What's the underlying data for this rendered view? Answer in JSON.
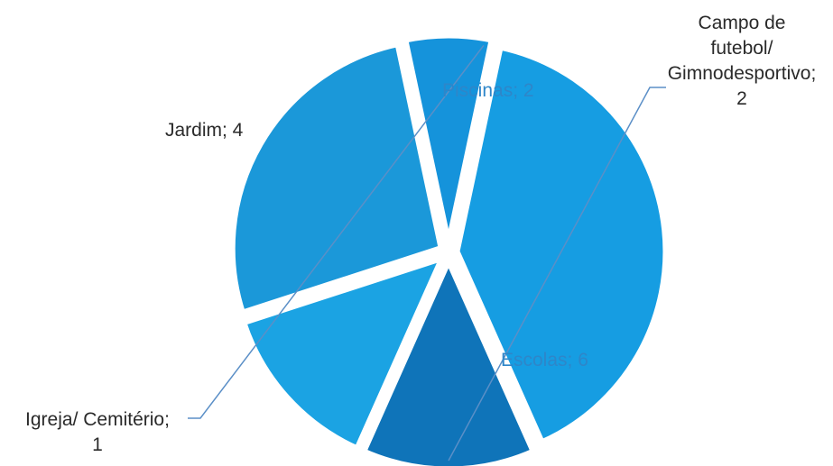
{
  "chart_data": {
    "type": "pie",
    "title": "",
    "slices": [
      {
        "label": "Escolas",
        "value": 6,
        "display": "Escolas; 6",
        "color": "#169de2"
      },
      {
        "label": "Igreja/ Cemitério",
        "value": 1,
        "display": "Igreja/ Cemitério; 1",
        "color": "#1593db"
      },
      {
        "label": "Jardim",
        "value": 4,
        "display": "Jardim; 4",
        "color": "#1b98d9"
      },
      {
        "label": "Piscinas",
        "value": 2,
        "display": "Piscinas; 2",
        "color": "#1ba3e3"
      },
      {
        "label": "Campo de futebol/ Gimnodesportivo",
        "value": 2,
        "display": "Campo de futebol/ Gimnodesportivo; 2",
        "color": "#0f74b9"
      }
    ],
    "labels": {
      "escolas": "Escolas; 6",
      "igreja_line1": "Igreja/ Cemitério;",
      "igreja_line2": "1",
      "jardim": "Jardim; 4",
      "piscinas": "Piscinas; 2",
      "campo_line1": "Campo de",
      "campo_line2": "futebol/",
      "campo_line3": "Gimnodesportivo;",
      "campo_line4": "2"
    },
    "leader_line_color": "#5b8fc7",
    "legend": "none"
  }
}
